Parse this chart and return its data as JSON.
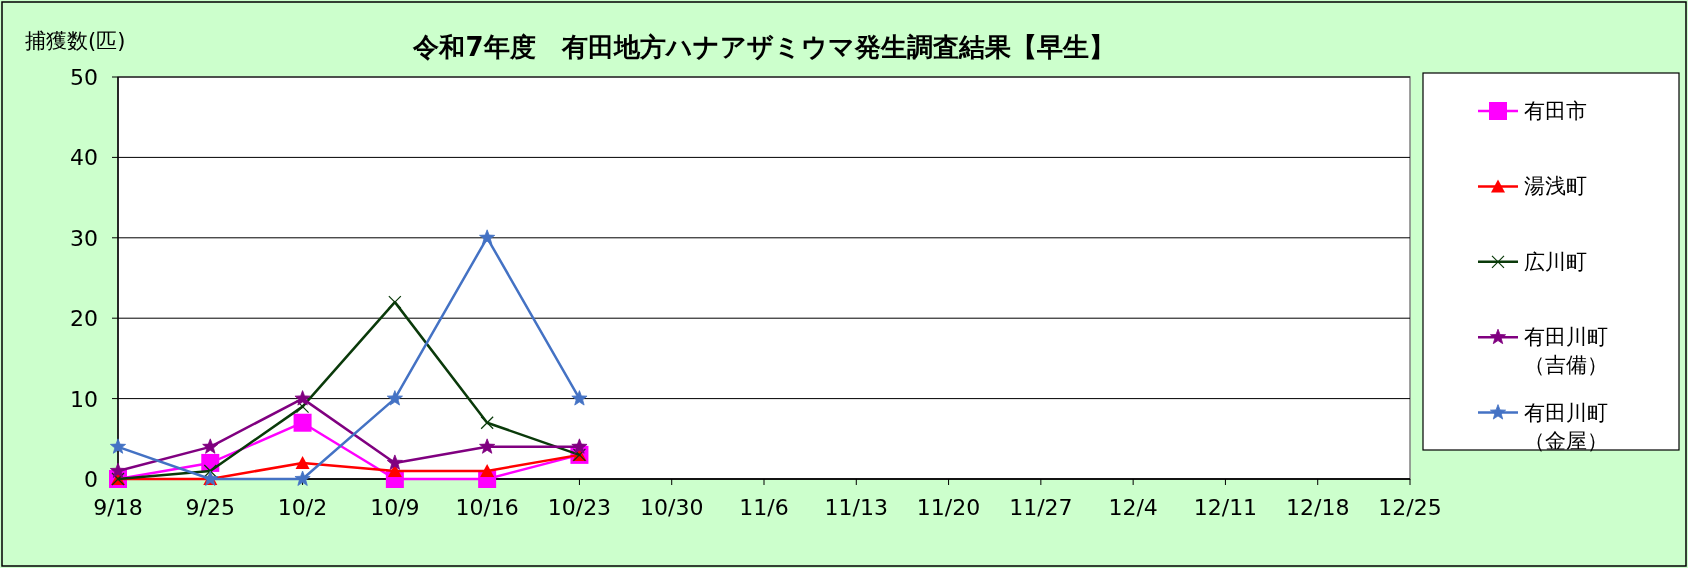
{
  "chart_data": {
    "type": "line",
    "title": "令和7年度　有田地方ハナアザミウマ発生調査結果【早生】",
    "ylabel": "捕獲数(匹)",
    "categories": [
      "9/18",
      "9/25",
      "10/2",
      "10/9",
      "10/16",
      "10/23",
      "10/30",
      "11/6",
      "11/13",
      "11/20",
      "11/27",
      "12/4",
      "12/11",
      "12/18",
      "12/25"
    ],
    "ylim": [
      0,
      50
    ],
    "yticks": [
      0,
      10,
      20,
      30,
      40,
      50
    ],
    "grid": "y",
    "legend": "right",
    "series": [
      {
        "name": "有田市",
        "color": "#ff00ff",
        "marker": "square",
        "values": [
          0,
          2,
          7,
          0,
          0,
          3,
          null,
          null,
          null,
          null,
          null,
          null,
          null,
          null,
          null
        ]
      },
      {
        "name": "湯浅町",
        "color": "#ff0000",
        "marker": "triangle",
        "values": [
          0,
          0,
          2,
          1,
          1,
          3,
          null,
          null,
          null,
          null,
          null,
          null,
          null,
          null,
          null
        ]
      },
      {
        "name": "広川町",
        "color": "#0a3a0a",
        "marker": "cross",
        "values": [
          0,
          1,
          9,
          22,
          7,
          3,
          null,
          null,
          null,
          null,
          null,
          null,
          null,
          null,
          null
        ]
      },
      {
        "name": "有田川町（吉備）",
        "color": "#800080",
        "marker": "star",
        "values": [
          1,
          4,
          10,
          2,
          4,
          4,
          null,
          null,
          null,
          null,
          null,
          null,
          null,
          null,
          null
        ]
      },
      {
        "name": "有田川町（金屋）",
        "color": "#4472c4",
        "marker": "star",
        "values": [
          4,
          0,
          0,
          10,
          30,
          10,
          null,
          null,
          null,
          null,
          null,
          null,
          null,
          null,
          null
        ]
      }
    ]
  }
}
